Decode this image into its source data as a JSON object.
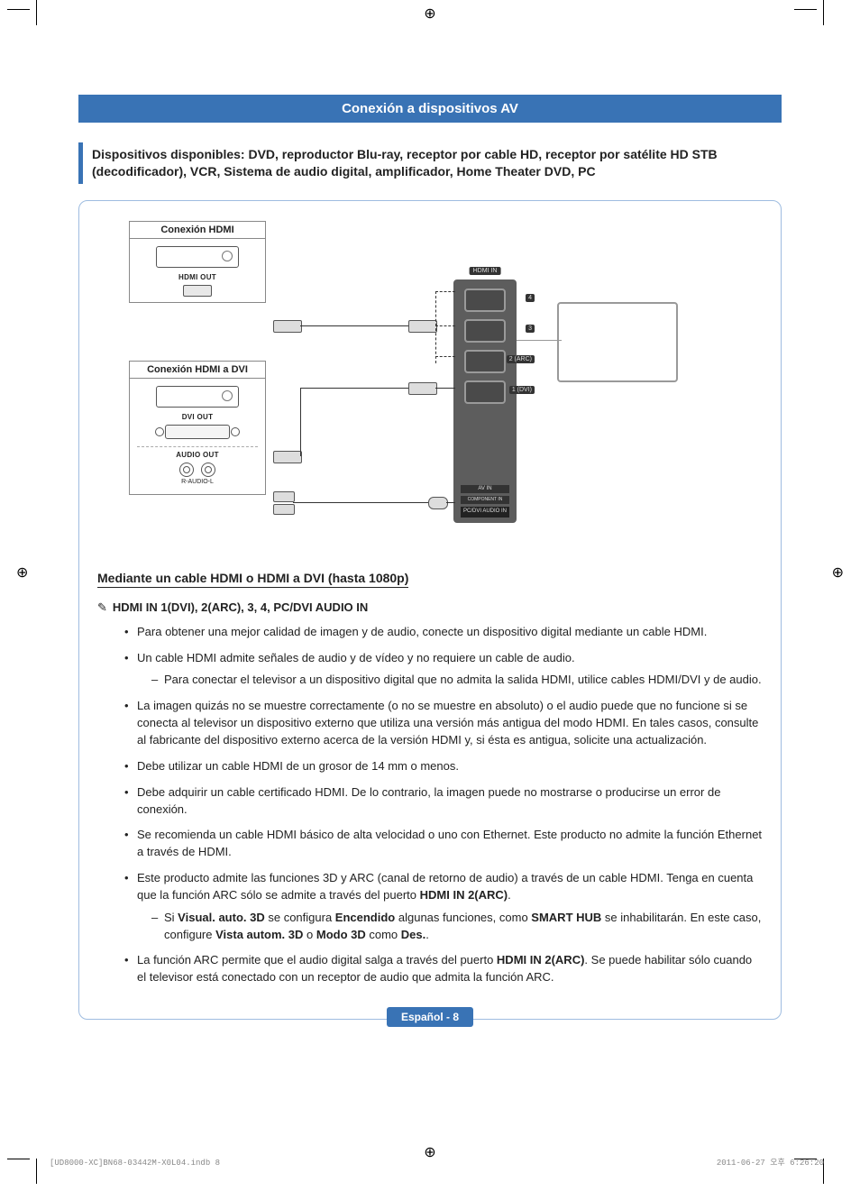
{
  "header": {
    "title": "Conexión a dispositivos AV"
  },
  "subtitle": "Dispositivos disponibles: DVD, reproductor Blu-ray, receptor por cable HD, receptor por satélite HD STB (decodificador), VCR, Sistema de audio digital, amplificador, Home Theater DVD, PC",
  "diagram": {
    "group1_title": "Conexión HDMI",
    "group1_port": "HDMI OUT",
    "group2_title": "Conexión HDMI a DVI",
    "group2_port1": "DVI OUT",
    "group2_port2": "AUDIO OUT",
    "group2_rca": "R-AUDIO-L",
    "tv_header": "HDMI IN",
    "tv_ports": [
      "4",
      "3",
      "2 (ARC)",
      "1 (DVI)"
    ],
    "tv_bottom1": "AV IN",
    "tv_bottom2": "PC/DVI AUDIO IN",
    "tv_bottom3": "COMPONENT IN"
  },
  "section_heading": "Mediante un cable HDMI o HDMI a DVI (hasta 1080p)",
  "note_line": "HDMI IN 1(DVI), 2(ARC), 3, 4, PC/DVI AUDIO IN",
  "bullets": [
    {
      "text": "Para obtener una mejor calidad de imagen y de audio, conecte un dispositivo digital mediante un cable HDMI."
    },
    {
      "text": "Un cable HDMI admite señales de audio y de vídeo y no requiere un cable de audio.",
      "sub": [
        "Para conectar el televisor a un dispositivo digital que no admita la salida HDMI, utilice cables HDMI/DVI y de audio."
      ]
    },
    {
      "text": "La imagen quizás no se muestre correctamente (o no se muestre en absoluto) o el audio puede que no funcione si se conecta al televisor un dispositivo externo que utiliza una versión más antigua del modo HDMI. En tales casos, consulte al fabricante del dispositivo externo acerca de la versión HDMI y, si ésta es antigua, solicite una actualización."
    },
    {
      "text": "Debe utilizar un cable HDMI de un grosor de 14 mm o menos."
    },
    {
      "text": "Debe adquirir un cable certificado HDMI. De lo contrario, la imagen puede no mostrarse o producirse un error de conexión."
    },
    {
      "text": "Se recomienda un cable HDMI básico de alta velocidad o uno con Ethernet. Este producto no admite la función Ethernet a través de HDMI."
    },
    {
      "html": "Este producto admite las funciones 3D y ARC (canal de retorno de audio) a través de un cable HDMI. Tenga en cuenta que la función ARC sólo se admite a través del puerto <span class=\"b\">HDMI IN 2(ARC)</span>.",
      "sub_html": [
        "Si <span class=\"b\">Visual. auto. 3D</span> se configura <span class=\"b\">Encendido</span> algunas funciones, como <span class=\"b\">SMART HUB</span> se inhabilitarán. En este caso, configure <span class=\"b\">Vista autom. 3D</span> o <span class=\"b\">Modo 3D</span> como <span class=\"b\">Des.</span>."
      ]
    },
    {
      "html": "La función ARC permite que el audio digital salga a través del puerto <span class=\"b\">HDMI IN 2(ARC)</span>. Se puede habilitar sólo cuando el televisor está conectado con un receptor de audio que admita la función ARC."
    }
  ],
  "footer": {
    "pill": "Español - 8",
    "left": "[UD8000-XC]BN68-03442M-X0L04.indb   8",
    "right": "2011-06-27   오후 6:26:20"
  },
  "colors": {
    "accent": "#3973b5",
    "box_border": "#9ebce0",
    "text": "#222222",
    "muted": "#888888"
  }
}
